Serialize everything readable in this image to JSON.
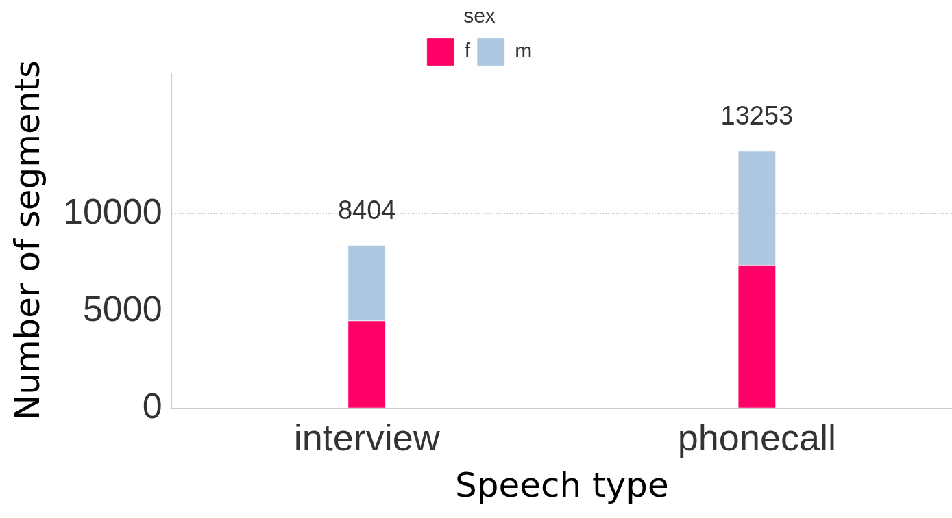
{
  "chart_data": {
    "type": "bar",
    "stacked": true,
    "xlabel": "Speech type",
    "ylabel": "Number of segments",
    "legend_title": "sex",
    "legend": "top",
    "categories": [
      "interview",
      "phonecall"
    ],
    "series": [
      {
        "name": "f",
        "color": "#ff0066",
        "values": [
          4500,
          7380
        ]
      },
      {
        "name": "m",
        "color": "#aec7e0",
        "values": [
          3904,
          5873
        ]
      }
    ],
    "totals": [
      "8404",
      "13253"
    ],
    "ylim": [
      0,
      17300
    ],
    "yticks": [
      0,
      5000,
      10000
    ],
    "grid": "y"
  }
}
